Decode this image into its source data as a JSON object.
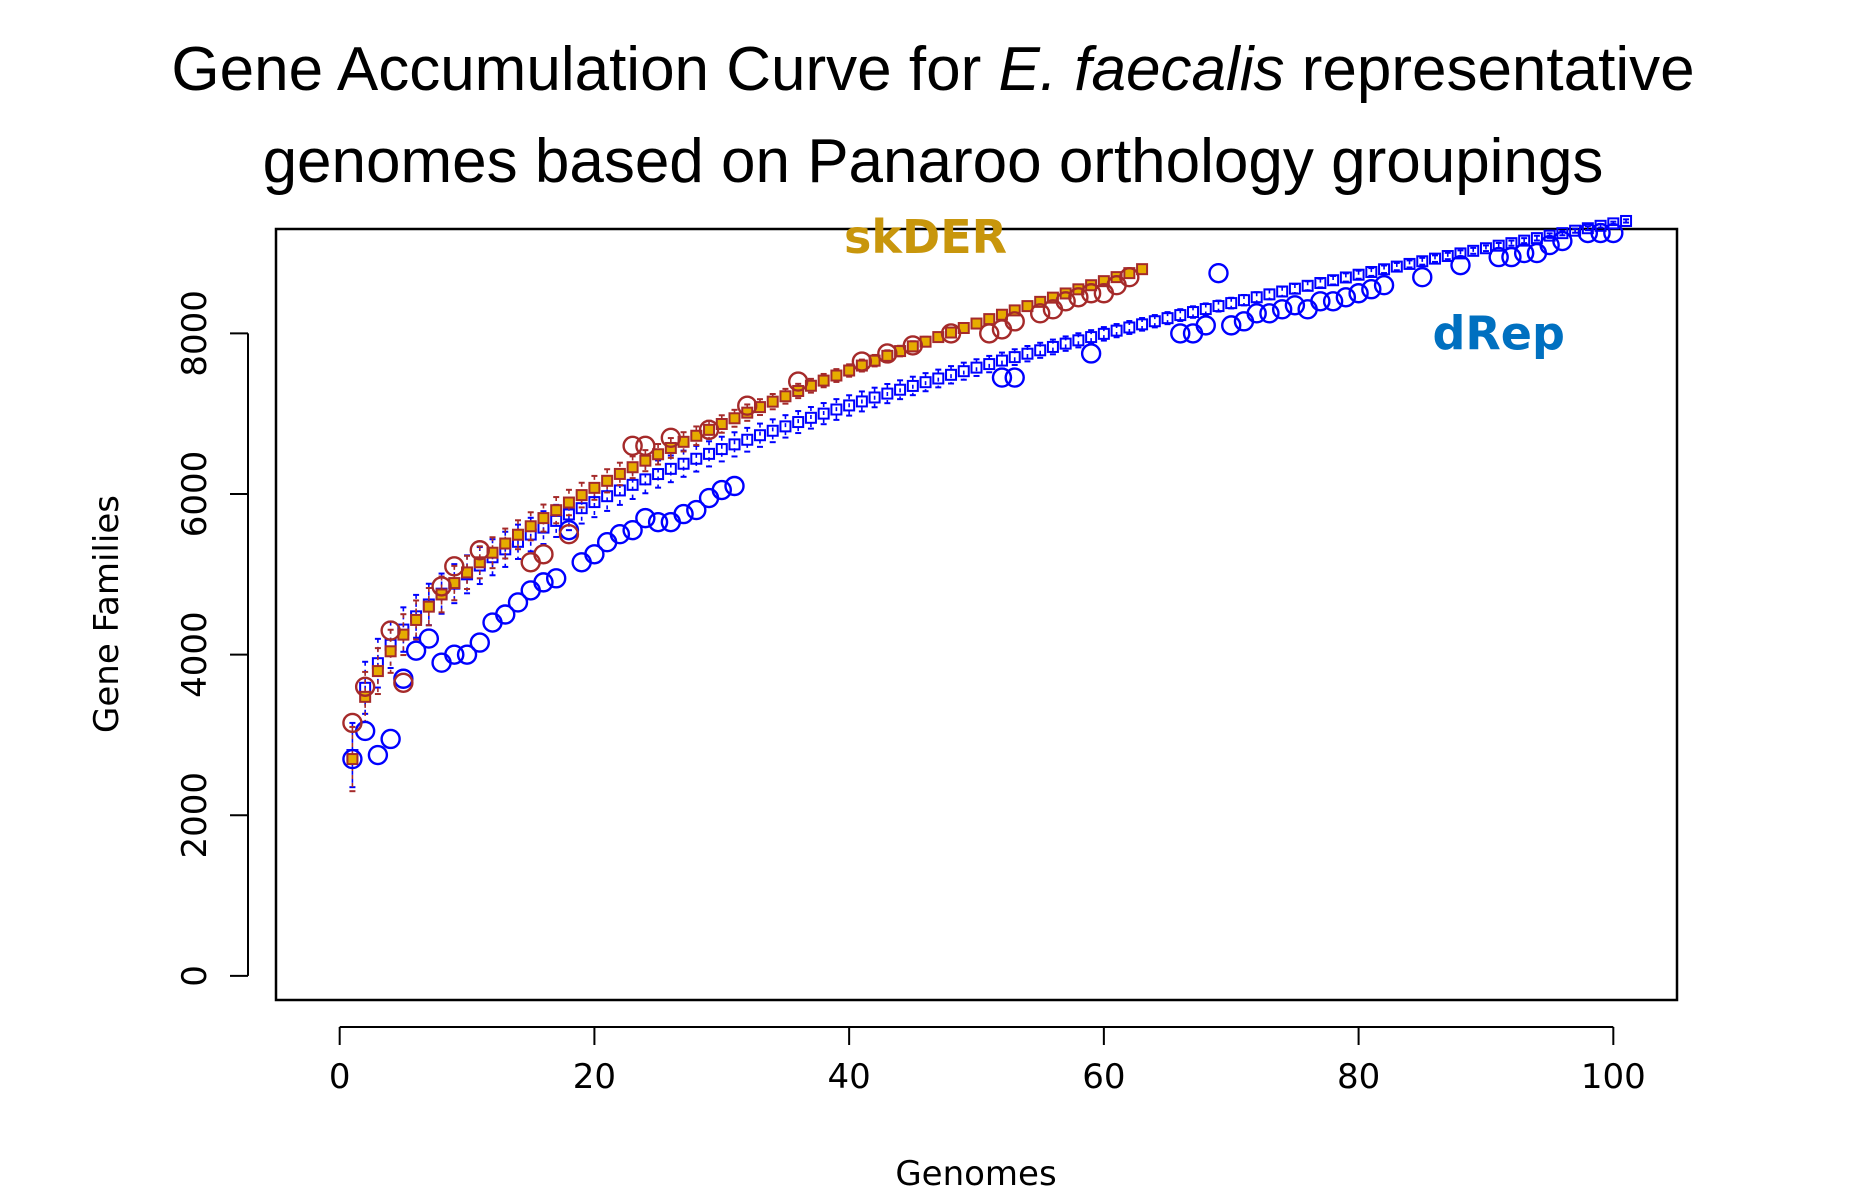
{
  "chart_data": {
    "type": "scatter",
    "title_lines": [
      [
        "Gene Accumulation Curve for ",
        "E. faecalis",
        " representative"
      ],
      [
        "genomes based on Panaroo orthology groupings"
      ]
    ],
    "xlabel": "Genomes",
    "ylabel": "Gene Families",
    "xlim": [
      -5,
      105
    ],
    "ylim": [
      -300,
      9300
    ],
    "xticks": [
      0,
      20,
      40,
      60,
      80,
      100
    ],
    "yticks": [
      0,
      2000,
      4000,
      6000,
      8000
    ],
    "grid": false,
    "annotations": [
      {
        "text": "skDER",
        "color": "#c8960c",
        "x": 46,
        "y": 9000
      },
      {
        "text": "dRep",
        "color": "#0070c0",
        "x": 91,
        "y": 7800
      }
    ],
    "series": [
      {
        "color": "#0000ff",
        "marker": "square",
        "n": 101,
        "mean_first": 2750,
        "mean_last": 9400,
        "mean_shape": 0.45,
        "err_first": 400,
        "err_last": 20,
        "points_x": [
          1,
          2,
          3,
          4,
          5,
          6,
          7,
          8,
          9,
          10,
          11,
          12,
          13,
          14,
          15,
          16,
          17,
          18,
          19,
          20,
          21,
          22,
          23,
          24,
          25,
          26,
          27,
          28,
          29,
          30,
          31,
          52,
          53,
          59,
          66,
          67,
          68,
          69,
          70,
          71,
          72,
          73,
          74,
          75,
          76,
          77,
          78,
          79,
          80,
          81,
          82,
          85,
          88,
          91,
          92,
          93,
          94,
          95,
          96,
          98,
          99,
          100
        ],
        "points_y": [
          2700,
          3050,
          2750,
          2950,
          3700,
          4050,
          4200,
          3900,
          4000,
          4000,
          4150,
          4400,
          4500,
          4650,
          4800,
          4900,
          4950,
          5550,
          5150,
          5250,
          5400,
          5500,
          5550,
          5700,
          5650,
          5650,
          5750,
          5800,
          5950,
          6050,
          6100,
          7450,
          7450,
          7750,
          8000,
          8000,
          8100,
          8750,
          8100,
          8150,
          8250,
          8250,
          8300,
          8350,
          8300,
          8400,
          8400,
          8450,
          8500,
          8550,
          8600,
          8700,
          8850,
          8950,
          8950,
          9000,
          9000,
          9100,
          9150,
          9250,
          9250,
          9250
        ]
      },
      {
        "color": "#a52a2a",
        "marker": "square-gold",
        "n": 63,
        "mean_first": 2700,
        "mean_last": 8800,
        "mean_shape": 0.5,
        "err_first": 400,
        "err_last": 20,
        "points_x": [
          1,
          2,
          4,
          5,
          8,
          9,
          11,
          15,
          16,
          18,
          23,
          24,
          26,
          29,
          32,
          36,
          41,
          43,
          45,
          48,
          51,
          52,
          53,
          55,
          56,
          57,
          58,
          59,
          60,
          61,
          62
        ],
        "points_y": [
          3150,
          3600,
          4300,
          3650,
          4850,
          5100,
          5300,
          5150,
          5250,
          5500,
          6600,
          6600,
          6700,
          6800,
          7100,
          7400,
          7650,
          7750,
          7850,
          8000,
          8000,
          8050,
          8150,
          8250,
          8300,
          8400,
          8450,
          8500,
          8500,
          8600,
          8700
        ]
      }
    ]
  }
}
